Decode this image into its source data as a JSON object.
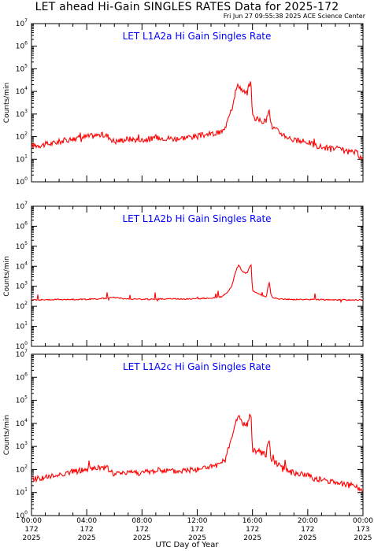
{
  "header": {
    "title": "LET ahead Hi-Gain SINGLES RATES Data for 2025-172",
    "timestamp": "Fri Jun 27 09:55:38 2025 ACE Science Center"
  },
  "xaxis_title": "UTC Day of Year",
  "colors": {
    "series": "#ff0000",
    "panel_title": "#0000ff",
    "axes": "#000000"
  },
  "chart_data": [
    {
      "type": "line",
      "title": "LET L1A2a Hi Gain Singles Rate",
      "ylabel": "Counts/min",
      "yscale": "log",
      "ylim": [
        1,
        10000000
      ],
      "y_tick_labels": [
        {
          "base": "10",
          "exp": "0"
        },
        {
          "base": "10",
          "exp": "1"
        },
        {
          "base": "10",
          "exp": "2"
        },
        {
          "base": "10",
          "exp": "3"
        },
        {
          "base": "10",
          "exp": "4"
        },
        {
          "base": "10",
          "exp": "5"
        },
        {
          "base": "10",
          "exp": "6"
        },
        {
          "base": "10",
          "exp": "7"
        }
      ],
      "xlim": [
        0,
        24
      ],
      "x_hours": [
        0,
        0.5,
        1,
        1.5,
        2,
        2.5,
        3,
        3.5,
        4,
        4.5,
        5,
        5.5,
        6,
        6.5,
        7,
        7.5,
        8,
        8.5,
        9,
        9.5,
        10,
        10.5,
        11,
        11.5,
        12,
        12.5,
        13,
        13.5,
        14,
        14.2,
        14.5,
        14.8,
        15,
        15.3,
        15.6,
        15.8,
        15.9,
        16,
        16.3,
        16.6,
        17,
        17.2,
        17.35,
        17.5,
        17.8,
        18,
        18.5,
        19,
        19.5,
        20,
        20.5,
        21,
        21.5,
        22,
        22.5,
        23,
        23.5,
        24
      ],
      "counts": [
        40,
        42,
        45,
        50,
        60,
        70,
        80,
        90,
        100,
        110,
        120,
        110,
        60,
        70,
        80,
        75,
        70,
        80,
        85,
        90,
        85,
        80,
        90,
        100,
        100,
        120,
        130,
        140,
        200,
        700,
        2000,
        12000,
        20000,
        10000,
        8000,
        20000,
        25000,
        800,
        600,
        500,
        450,
        2500,
        300,
        250,
        180,
        150,
        100,
        70,
        60,
        60,
        40,
        35,
        30,
        30,
        25,
        20,
        20,
        10
      ]
    },
    {
      "type": "line",
      "title": "LET L1A2b Hi Gain Singles Rate",
      "ylabel": "Counts/min",
      "yscale": "log",
      "ylim": [
        1,
        10000000
      ],
      "y_tick_labels": [
        {
          "base": "10",
          "exp": "0"
        },
        {
          "base": "10",
          "exp": "1"
        },
        {
          "base": "10",
          "exp": "2"
        },
        {
          "base": "10",
          "exp": "3"
        },
        {
          "base": "10",
          "exp": "4"
        },
        {
          "base": "10",
          "exp": "5"
        },
        {
          "base": "10",
          "exp": "6"
        },
        {
          "base": "10",
          "exp": "7"
        }
      ],
      "xlim": [
        0,
        24
      ],
      "x_hours": [
        0,
        1,
        2,
        3,
        4,
        5,
        6,
        7,
        8,
        9,
        10,
        11,
        12,
        13,
        13.8,
        14.2,
        14.5,
        14.8,
        15,
        15.3,
        15.6,
        15.8,
        15.9,
        16,
        16.5,
        17,
        17.2,
        17.35,
        17.5,
        18,
        19,
        20,
        21,
        22,
        23,
        24
      ],
      "counts": [
        210,
        215,
        220,
        220,
        225,
        240,
        280,
        230,
        225,
        230,
        240,
        230,
        240,
        260,
        300,
        500,
        1000,
        6000,
        12000,
        5000,
        4500,
        10000,
        13000,
        600,
        400,
        300,
        1800,
        350,
        260,
        230,
        220,
        220,
        215,
        210,
        210,
        210
      ]
    },
    {
      "type": "line",
      "title": "LET L1A2c Hi Gain Singles Rate",
      "ylabel": "Counts/min",
      "yscale": "log",
      "ylim": [
        1,
        10000000
      ],
      "y_tick_labels": [
        {
          "base": "10",
          "exp": "0"
        },
        {
          "base": "10",
          "exp": "1"
        },
        {
          "base": "10",
          "exp": "2"
        },
        {
          "base": "10",
          "exp": "3"
        },
        {
          "base": "10",
          "exp": "4"
        },
        {
          "base": "10",
          "exp": "5"
        },
        {
          "base": "10",
          "exp": "6"
        },
        {
          "base": "10",
          "exp": "7"
        }
      ],
      "xlim": [
        0,
        24
      ],
      "x_hours": [
        0,
        0.5,
        1,
        1.5,
        2,
        2.5,
        3,
        3.5,
        4,
        4.5,
        5,
        5.5,
        6,
        6.5,
        7,
        7.5,
        8,
        8.5,
        9,
        9.5,
        10,
        10.5,
        11,
        11.5,
        12,
        12.5,
        13,
        13.5,
        14,
        14.2,
        14.5,
        14.8,
        15,
        15.3,
        15.6,
        15.8,
        15.9,
        16,
        16.3,
        16.6,
        17,
        17.2,
        17.35,
        17.5,
        17.8,
        18,
        18.5,
        19,
        19.5,
        20,
        20.5,
        21,
        21.5,
        22,
        22.5,
        23,
        23.5,
        24
      ],
      "counts": [
        40,
        42,
        45,
        50,
        60,
        70,
        80,
        90,
        100,
        110,
        120,
        110,
        60,
        70,
        80,
        75,
        70,
        80,
        85,
        90,
        85,
        80,
        90,
        100,
        100,
        120,
        130,
        140,
        200,
        700,
        2000,
        12000,
        20000,
        10000,
        8000,
        20000,
        25000,
        800,
        600,
        500,
        450,
        2500,
        300,
        250,
        180,
        150,
        100,
        70,
        60,
        60,
        40,
        35,
        30,
        30,
        25,
        20,
        20,
        10
      ]
    }
  ],
  "x_ticks": [
    {
      "time": "00:00",
      "day": "172",
      "year": "2025"
    },
    {
      "time": "04:00",
      "day": "172",
      "year": "2025"
    },
    {
      "time": "08:00",
      "day": "172",
      "year": "2025"
    },
    {
      "time": "12:00",
      "day": "172",
      "year": "2025"
    },
    {
      "time": "16:00",
      "day": "172",
      "year": "2025"
    },
    {
      "time": "20:00",
      "day": "172",
      "year": "2025"
    },
    {
      "time": "00:00",
      "day": "173",
      "year": "2025"
    }
  ]
}
